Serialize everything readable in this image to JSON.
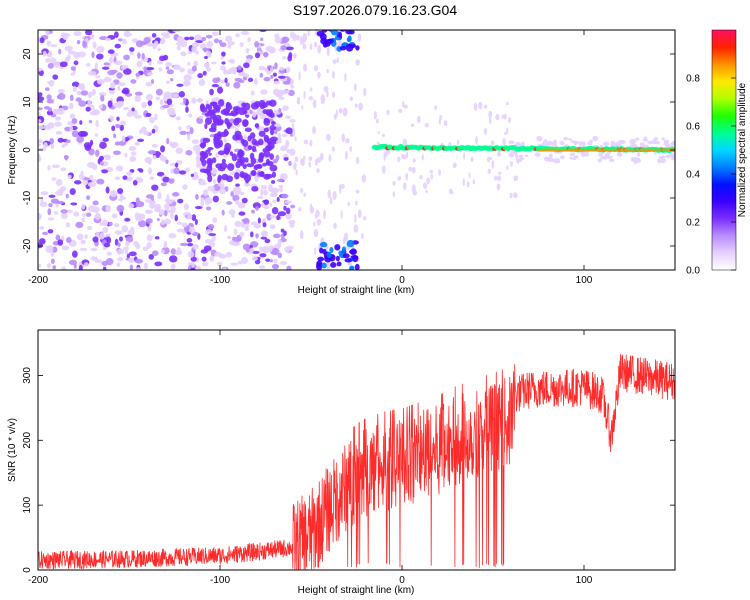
{
  "title": "S197.2026.079.16.23.G04",
  "colors": {
    "snr_line": "#ff2a2a",
    "frame": "#000000",
    "colormap": [
      "#ffffff",
      "#e6d0ff",
      "#b98cff",
      "#7a2fff",
      "#3a00ff",
      "#0010ff",
      "#0080ff",
      "#00d8ff",
      "#00ff90",
      "#20ff00",
      "#b0ff00",
      "#ffe800",
      "#ff9000",
      "#ff2000",
      "#ff1060"
    ]
  },
  "chart_data": [
    {
      "type": "heatmap",
      "title": "S197.2026.079.16.23.G04",
      "xlabel": "Height of straight line (km)",
      "ylabel": "Frequency (Hz)",
      "xlim": [
        -200,
        150
      ],
      "ylim": [
        -25,
        25
      ],
      "x_ticks": [
        -200,
        -100,
        0,
        100
      ],
      "y_ticks": [
        20,
        10,
        0,
        -10,
        -20
      ],
      "colorbar": {
        "label": "Normalized spectral amplitude",
        "range": [
          0,
          1
        ],
        "ticks": [
          0.0,
          0.2,
          0.4,
          0.6,
          0.8
        ]
      },
      "features": {
        "noise_region_x": [
          -200,
          -60
        ],
        "cluster_center": {
          "x": -90,
          "y": 2
        },
        "gap_region_x": [
          -55,
          -15
        ],
        "signal_line_x": [
          -15,
          150
        ],
        "signal_line_freq": 0,
        "corner_hotspots": [
          {
            "x": -35,
            "y": -22
          },
          {
            "x": -35,
            "y": 24
          }
        ]
      }
    },
    {
      "type": "line",
      "xlabel": "Height of straight line (km)",
      "ylabel": "SNR (10 * v/v)",
      "xlim": [
        -200,
        150
      ],
      "ylim": [
        0,
        370
      ],
      "x_ticks": [
        -200,
        -100,
        0,
        100
      ],
      "y_ticks": [
        0,
        100,
        200,
        300
      ],
      "series": [
        {
          "name": "SNR",
          "x": [
            -200,
            -150,
            -100,
            -80,
            -60,
            -50,
            -40,
            -30,
            -20,
            -10,
            0,
            10,
            20,
            30,
            40,
            50,
            60,
            62,
            70,
            80,
            100,
            110,
            115,
            120,
            130,
            140,
            150
          ],
          "y": [
            15,
            17,
            22,
            28,
            35,
            55,
            95,
            130,
            150,
            160,
            165,
            175,
            185,
            200,
            210,
            220,
            230,
            270,
            278,
            280,
            282,
            270,
            205,
            305,
            300,
            295,
            290
          ]
        }
      ]
    }
  ]
}
